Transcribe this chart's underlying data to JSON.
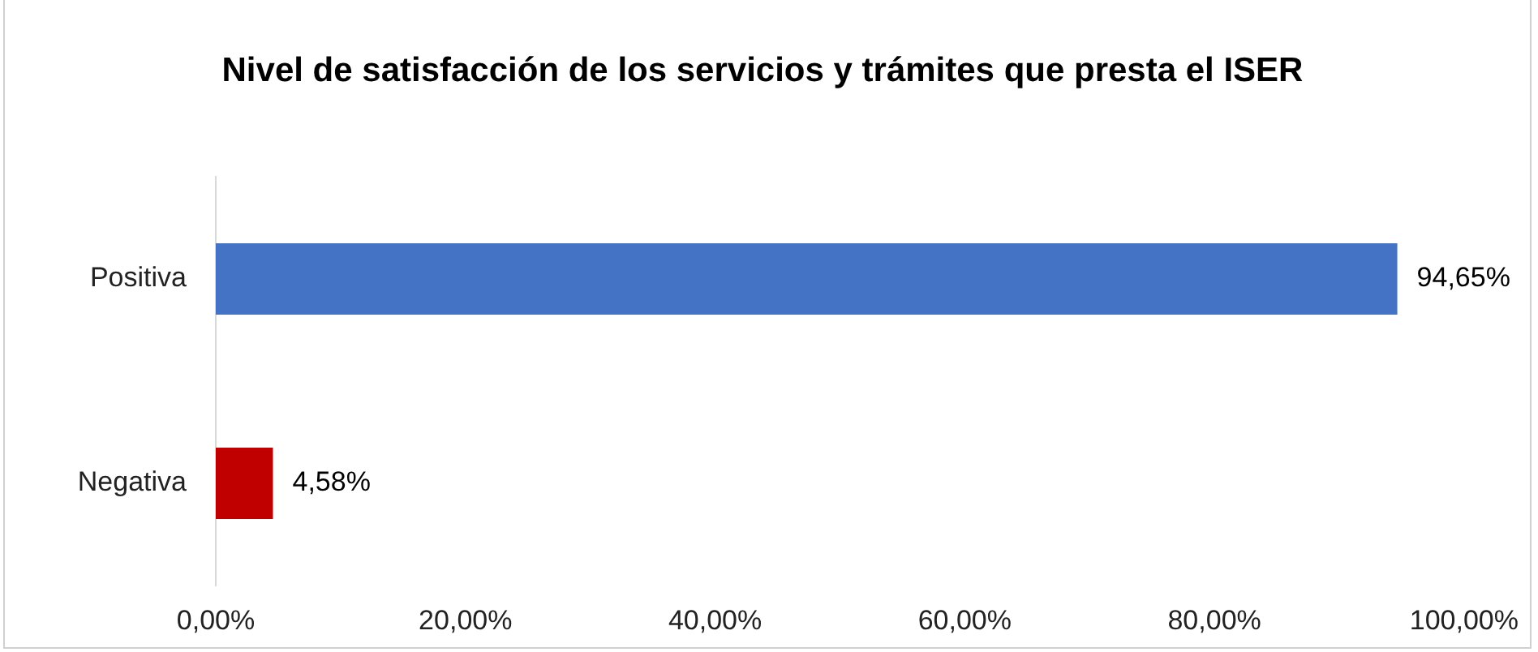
{
  "chart_data": {
    "type": "bar",
    "orientation": "horizontal",
    "title": "Nivel de satisfacción de los servicios y trámites que presta el ISER",
    "categories": [
      "Positiva",
      "Negativa"
    ],
    "values": [
      94.65,
      4.58
    ],
    "colors": [
      "#4472c4",
      "#c00000"
    ],
    "value_labels": [
      "94,65%",
      "4,58%"
    ],
    "xlim": [
      0,
      100
    ],
    "xticks": [
      {
        "value": 0,
        "label": "0,00%"
      },
      {
        "value": 20,
        "label": "20,00%"
      },
      {
        "value": 40,
        "label": "40,00%"
      },
      {
        "value": 60,
        "label": "60,00%"
      },
      {
        "value": 80,
        "label": "80,00%"
      },
      {
        "value": 100,
        "label": "100,00%"
      }
    ],
    "grid": false,
    "legend": false
  }
}
